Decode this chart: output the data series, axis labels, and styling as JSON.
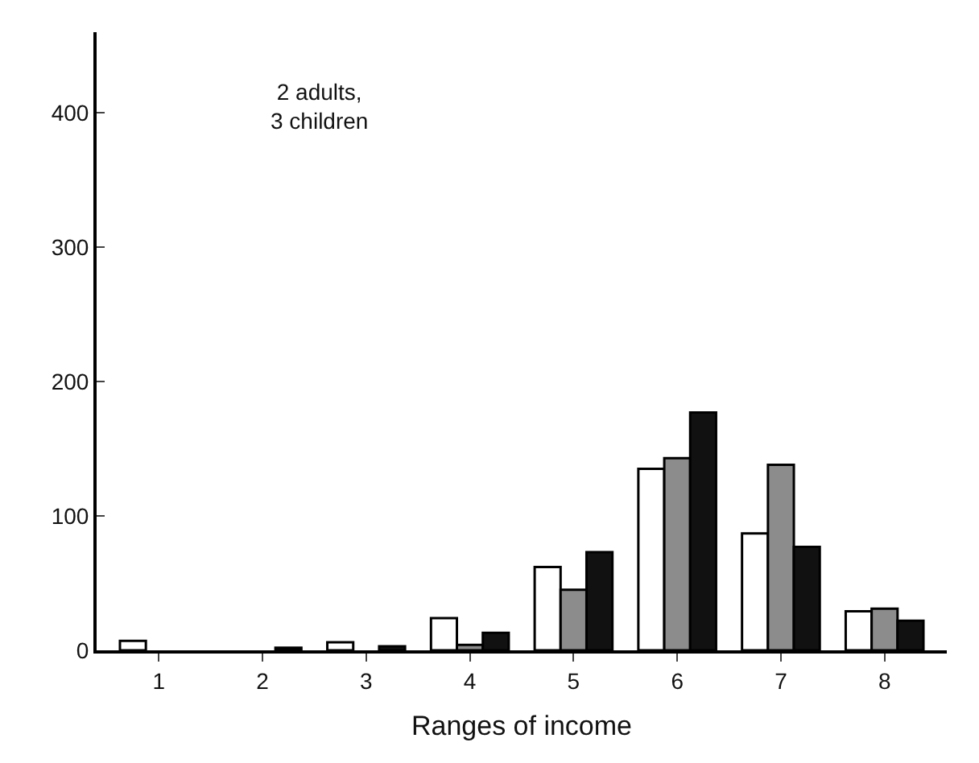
{
  "chart_data": {
    "type": "bar",
    "xlabel": "Ranges of income",
    "categories": [
      "1",
      "2",
      "3",
      "4",
      "5",
      "6",
      "7",
      "8"
    ],
    "series": [
      {
        "color": "#ffffff",
        "values": [
          7,
          null,
          6,
          24,
          62,
          135,
          87,
          29
        ]
      },
      {
        "color": "#8c8c8c",
        "values": [
          null,
          null,
          null,
          4,
          45,
          143,
          138,
          31
        ]
      },
      {
        "color": "#111111",
        "values": [
          null,
          2,
          3,
          13,
          73,
          177,
          77,
          22
        ]
      }
    ],
    "ylim": [
      0,
      460
    ],
    "yticks": [
      0,
      100,
      200,
      300,
      400
    ],
    "legend": false,
    "annotations": [
      "2 adults,\n3 children"
    ]
  }
}
